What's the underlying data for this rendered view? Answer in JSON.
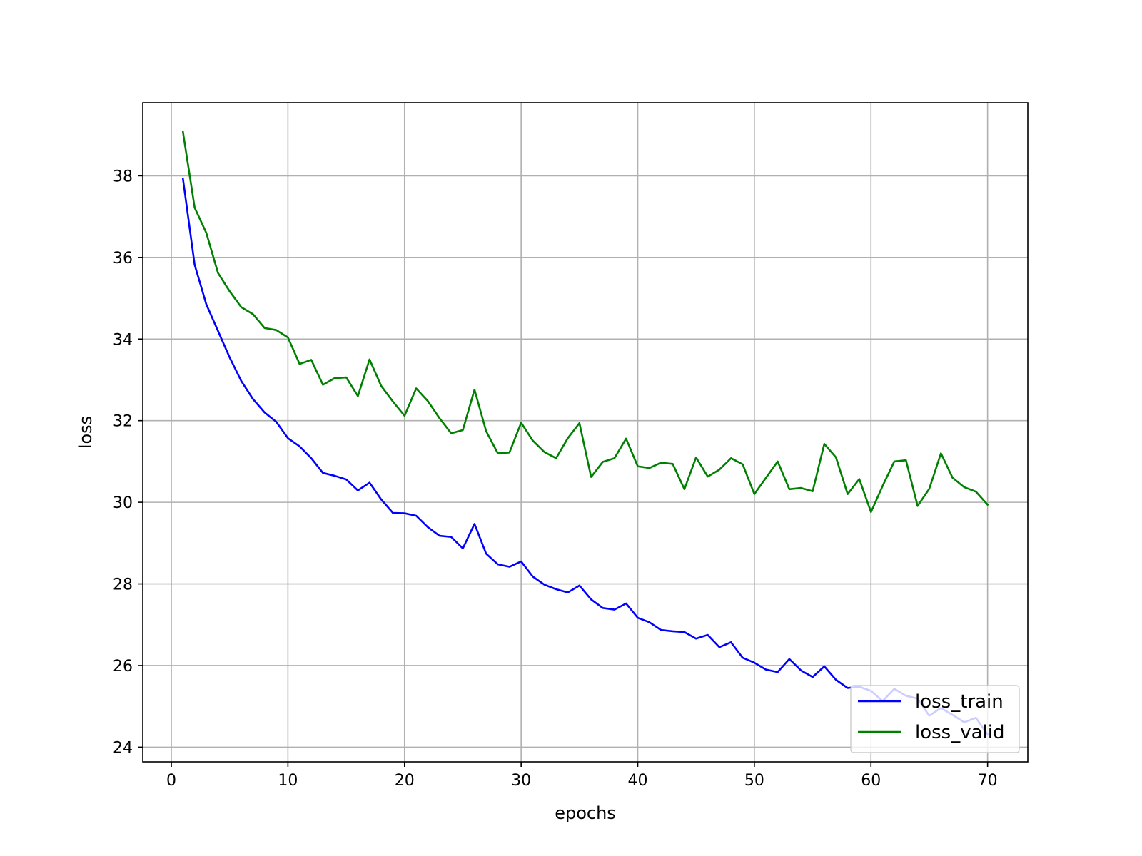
{
  "chart_data": {
    "type": "line",
    "title": "",
    "xlabel": "epochs",
    "ylabel": "loss",
    "xlim": [
      -2.45,
      73.45
    ],
    "ylim": [
      23.64,
      39.79
    ],
    "xticks": [
      0,
      10,
      20,
      30,
      40,
      50,
      60,
      70
    ],
    "yticks": [
      24,
      26,
      28,
      30,
      32,
      34,
      36,
      38
    ],
    "grid": true,
    "legend_position": "lower right",
    "x": [
      1,
      2,
      3,
      4,
      5,
      6,
      7,
      8,
      9,
      10,
      11,
      12,
      13,
      14,
      15,
      16,
      17,
      18,
      19,
      20,
      21,
      22,
      23,
      24,
      25,
      26,
      27,
      28,
      29,
      30,
      31,
      32,
      33,
      34,
      35,
      36,
      37,
      38,
      39,
      40,
      41,
      42,
      43,
      44,
      45,
      46,
      47,
      48,
      49,
      50,
      51,
      52,
      53,
      54,
      55,
      56,
      57,
      58,
      59,
      60,
      61,
      62,
      63,
      64,
      65,
      66,
      67,
      68,
      69,
      70
    ],
    "series": [
      {
        "name": "loss_train",
        "color": "#0000ff",
        "values": [
          37.92,
          35.82,
          34.85,
          34.2,
          33.55,
          32.97,
          32.53,
          32.2,
          31.97,
          31.57,
          31.37,
          31.08,
          30.72,
          30.65,
          30.56,
          30.29,
          30.48,
          30.07,
          29.74,
          29.73,
          29.67,
          29.39,
          29.18,
          29.15,
          28.87,
          29.47,
          28.74,
          28.48,
          28.42,
          28.55,
          28.18,
          27.98,
          27.87,
          27.79,
          27.96,
          27.62,
          27.41,
          27.37,
          27.52,
          27.17,
          27.06,
          26.87,
          26.84,
          26.82,
          26.66,
          26.75,
          26.45,
          26.57,
          26.19,
          26.07,
          25.9,
          25.84,
          26.16,
          25.88,
          25.72,
          25.98,
          25.65,
          25.45,
          25.48,
          25.38,
          25.13,
          25.43,
          25.26,
          25.19,
          24.77,
          24.96,
          24.79,
          24.61,
          24.72,
          24.31
        ]
      },
      {
        "name": "loss_valid",
        "color": "#008000",
        "values": [
          39.07,
          37.22,
          36.6,
          35.62,
          35.17,
          34.78,
          34.61,
          34.27,
          34.22,
          34.04,
          33.39,
          33.49,
          32.88,
          33.04,
          33.06,
          32.6,
          33.5,
          32.85,
          32.47,
          32.12,
          32.79,
          32.48,
          32.06,
          31.69,
          31.77,
          32.76,
          31.74,
          31.2,
          31.22,
          31.95,
          31.51,
          31.23,
          31.08,
          31.57,
          31.94,
          30.62,
          30.99,
          31.08,
          31.56,
          30.88,
          30.84,
          30.97,
          30.94,
          30.32,
          31.1,
          30.63,
          30.8,
          31.08,
          30.93,
          30.2,
          30.6,
          31.0,
          30.32,
          30.35,
          30.27,
          31.43,
          31.1,
          30.2,
          30.57,
          29.76,
          30.4,
          31.0,
          31.03,
          29.91,
          30.33,
          31.2,
          30.6,
          30.37,
          30.26,
          29.94
        ]
      }
    ]
  }
}
